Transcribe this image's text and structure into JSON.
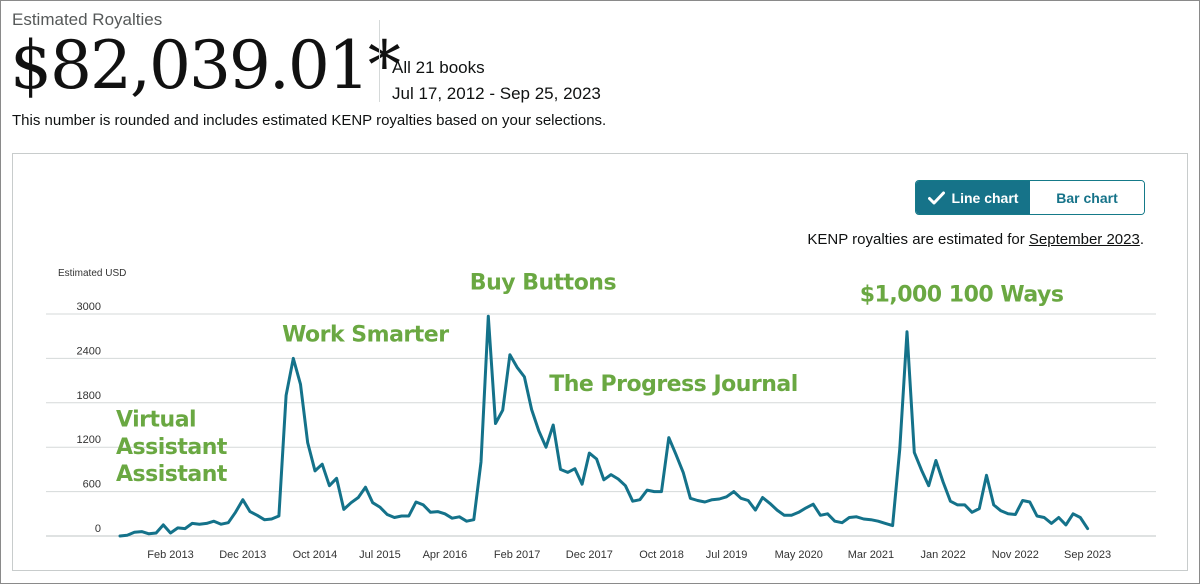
{
  "header": {
    "label": "Estimated Royalties",
    "amount": "$82,039.01*",
    "books": "All 21 books",
    "date_range": "Jul 17, 2012 - Sep 25, 2023",
    "note": "This number is rounded and includes estimated KENP royalties based on your selections."
  },
  "toggle": {
    "line_label": "Line chart",
    "bar_label": "Bar chart",
    "active": "line"
  },
  "kenp": {
    "prefix": "KENP royalties are estimated for ",
    "link": "September 2023",
    "suffix": "."
  },
  "colors": {
    "line": "#14728a",
    "annotation": "#6aa842",
    "grid": "#d5d9d9",
    "toggle_active": "#167389"
  },
  "chart_data": {
    "type": "line",
    "title": "",
    "ylabel": "Estimated USD",
    "xlabel": "",
    "ylim": [
      0,
      3000
    ],
    "yticks": [
      0,
      600,
      1200,
      1800,
      2400,
      3000
    ],
    "xlim": [
      0,
      136
    ],
    "xticks": [
      {
        "label": "Feb 2013",
        "x": 7
      },
      {
        "label": "Dec 2013",
        "x": 17
      },
      {
        "label": "Oct 2014",
        "x": 27
      },
      {
        "label": "Jul 2015",
        "x": 36
      },
      {
        "label": "Apr 2016",
        "x": 45
      },
      {
        "label": "Feb 2017",
        "x": 55
      },
      {
        "label": "Dec 2017",
        "x": 65
      },
      {
        "label": "Oct 2018",
        "x": 75
      },
      {
        "label": "Jul 2019",
        "x": 84
      },
      {
        "label": "May 2020",
        "x": 94
      },
      {
        "label": "Mar 2021",
        "x": 104
      },
      {
        "label": "Jan 2022",
        "x": 114
      },
      {
        "label": "Nov 2022",
        "x": 124
      },
      {
        "label": "Sep 2023",
        "x": 134
      }
    ],
    "series": [
      {
        "name": "Estimated Royalties",
        "points": [
          [
            0,
            0
          ],
          [
            1,
            10
          ],
          [
            2,
            50
          ],
          [
            3,
            60
          ],
          [
            4,
            30
          ],
          [
            5,
            40
          ],
          [
            6,
            150
          ],
          [
            7,
            40
          ],
          [
            8,
            110
          ],
          [
            9,
            100
          ],
          [
            10,
            170
          ],
          [
            11,
            160
          ],
          [
            12,
            170
          ],
          [
            13,
            200
          ],
          [
            14,
            160
          ],
          [
            15,
            180
          ],
          [
            16,
            320
          ],
          [
            17,
            490
          ],
          [
            18,
            330
          ],
          [
            19,
            280
          ],
          [
            20,
            220
          ],
          [
            21,
            230
          ],
          [
            22,
            270
          ],
          [
            23,
            1900
          ],
          [
            24,
            2400
          ],
          [
            25,
            2050
          ],
          [
            26,
            1260
          ],
          [
            27,
            880
          ],
          [
            28,
            970
          ],
          [
            29,
            680
          ],
          [
            30,
            780
          ],
          [
            31,
            360
          ],
          [
            32,
            450
          ],
          [
            33,
            520
          ],
          [
            34,
            660
          ],
          [
            35,
            450
          ],
          [
            36,
            390
          ],
          [
            37,
            290
          ],
          [
            38,
            250
          ],
          [
            39,
            270
          ],
          [
            40,
            270
          ],
          [
            41,
            460
          ],
          [
            42,
            420
          ],
          [
            43,
            320
          ],
          [
            44,
            330
          ],
          [
            45,
            300
          ],
          [
            46,
            240
          ],
          [
            47,
            260
          ],
          [
            48,
            200
          ],
          [
            49,
            220
          ],
          [
            50,
            1000
          ],
          [
            51,
            2970
          ],
          [
            52,
            1520
          ],
          [
            53,
            1700
          ],
          [
            54,
            2450
          ],
          [
            55,
            2280
          ],
          [
            56,
            2150
          ],
          [
            57,
            1710
          ],
          [
            58,
            1420
          ],
          [
            59,
            1200
          ],
          [
            60,
            1500
          ],
          [
            61,
            900
          ],
          [
            62,
            860
          ],
          [
            63,
            910
          ],
          [
            64,
            700
          ],
          [
            65,
            1120
          ],
          [
            66,
            1040
          ],
          [
            67,
            760
          ],
          [
            68,
            830
          ],
          [
            69,
            770
          ],
          [
            70,
            680
          ],
          [
            71,
            470
          ],
          [
            72,
            490
          ],
          [
            73,
            620
          ],
          [
            74,
            600
          ],
          [
            75,
            600
          ],
          [
            76,
            1330
          ],
          [
            77,
            1100
          ],
          [
            78,
            860
          ],
          [
            79,
            510
          ],
          [
            80,
            480
          ],
          [
            81,
            460
          ],
          [
            82,
            490
          ],
          [
            83,
            500
          ],
          [
            84,
            530
          ],
          [
            85,
            600
          ],
          [
            86,
            510
          ],
          [
            87,
            480
          ],
          [
            88,
            350
          ],
          [
            89,
            520
          ],
          [
            90,
            440
          ],
          [
            91,
            350
          ],
          [
            92,
            280
          ],
          [
            93,
            280
          ],
          [
            94,
            320
          ],
          [
            95,
            380
          ],
          [
            96,
            430
          ],
          [
            97,
            280
          ],
          [
            98,
            300
          ],
          [
            99,
            200
          ],
          [
            100,
            180
          ],
          [
            101,
            250
          ],
          [
            102,
            260
          ],
          [
            103,
            230
          ],
          [
            104,
            220
          ],
          [
            105,
            200
          ],
          [
            106,
            170
          ],
          [
            107,
            140
          ],
          [
            108,
            1180
          ],
          [
            109,
            2760
          ],
          [
            110,
            1130
          ],
          [
            111,
            890
          ],
          [
            112,
            680
          ],
          [
            113,
            1020
          ],
          [
            114,
            730
          ],
          [
            115,
            470
          ],
          [
            116,
            420
          ],
          [
            117,
            420
          ],
          [
            118,
            320
          ],
          [
            119,
            370
          ],
          [
            120,
            820
          ],
          [
            121,
            420
          ],
          [
            122,
            340
          ],
          [
            123,
            300
          ],
          [
            124,
            290
          ],
          [
            125,
            480
          ],
          [
            126,
            460
          ],
          [
            127,
            270
          ],
          [
            128,
            250
          ],
          [
            129,
            170
          ],
          [
            130,
            250
          ],
          [
            131,
            150
          ],
          [
            132,
            300
          ],
          [
            133,
            250
          ],
          [
            134,
            100
          ]
        ]
      }
    ],
    "annotations": [
      {
        "text": "Virtual",
        "x": 0,
        "y": 1480
      },
      {
        "text": "Assistant",
        "x": 0,
        "y": 1110
      },
      {
        "text": "Assistant",
        "x": 0,
        "y": 740
      },
      {
        "text": "Work Smarter",
        "x": 23,
        "y": 2630
      },
      {
        "text": "Buy Buttons",
        "x": 49,
        "y": 3330
      },
      {
        "text": "The Progress Journal",
        "x": 60,
        "y": 1960
      },
      {
        "text": "$1,000 100 Ways",
        "x": 103,
        "y": 3170
      }
    ]
  }
}
